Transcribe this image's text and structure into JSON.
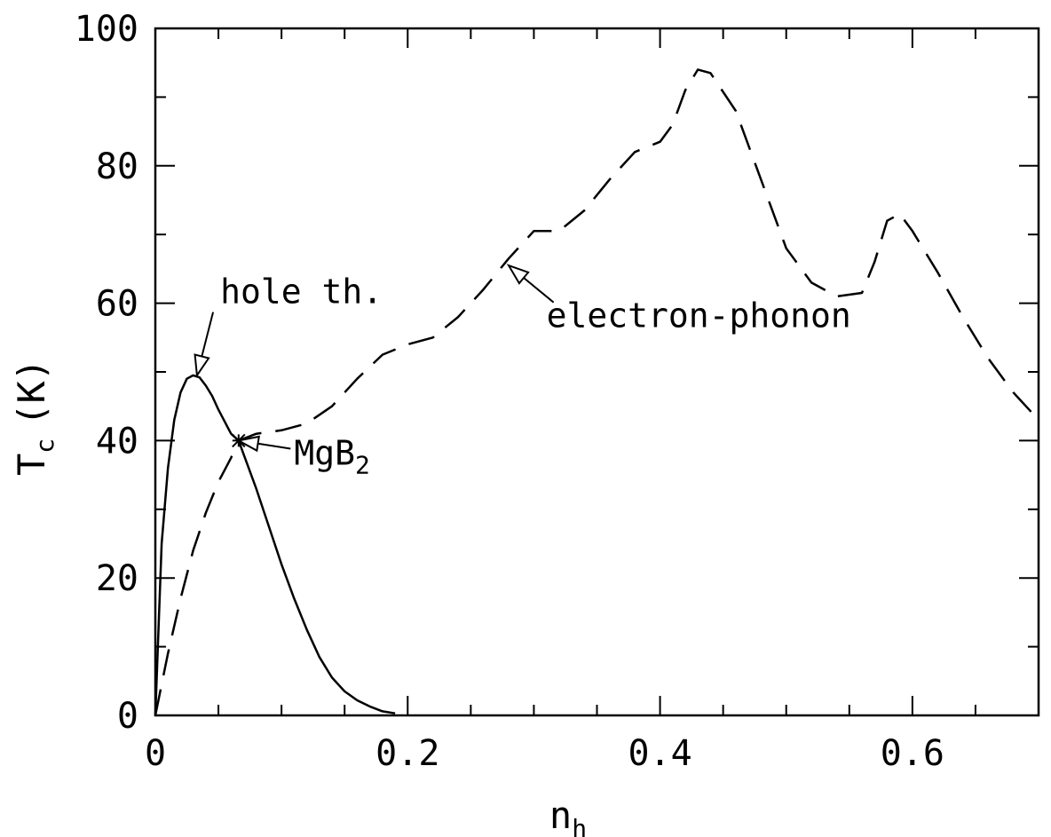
{
  "chart_data": {
    "type": "line",
    "xlabel": "n",
    "xlabel_sub": "h",
    "ylabel": "T",
    "ylabel_sub": "c",
    "ylabel_unit": "(K)",
    "xlim": [
      0,
      0.7
    ],
    "ylim": [
      0,
      100
    ],
    "x_ticks": [
      {
        "value": 0,
        "label": "0"
      },
      {
        "value": 0.2,
        "label": "0.2"
      },
      {
        "value": 0.4,
        "label": "0.4"
      },
      {
        "value": 0.6,
        "label": "0.6"
      }
    ],
    "y_ticks": [
      {
        "value": 0,
        "label": "0"
      },
      {
        "value": 20,
        "label": "20"
      },
      {
        "value": 40,
        "label": "40"
      },
      {
        "value": 60,
        "label": "60"
      },
      {
        "value": 80,
        "label": "80"
      },
      {
        "value": 100,
        "label": "100"
      }
    ],
    "x_minor_step": 0.05,
    "y_minor_step": 10,
    "grid": false,
    "series": [
      {
        "style": "solid",
        "x": [
          0.0,
          0.005,
          0.01,
          0.015,
          0.02,
          0.025,
          0.03,
          0.035,
          0.04,
          0.045,
          0.05,
          0.06,
          0.066,
          0.07,
          0.08,
          0.09,
          0.1,
          0.11,
          0.12,
          0.13,
          0.14,
          0.15,
          0.16,
          0.17,
          0.18,
          0.19
        ],
        "y": [
          0,
          25,
          36,
          43,
          47,
          49,
          49.5,
          49.2,
          48,
          46.5,
          44.5,
          41,
          40,
          38,
          33,
          27.5,
          22,
          17,
          12.5,
          8.5,
          5.5,
          3.5,
          2.2,
          1.3,
          0.6,
          0.3
        ]
      },
      {
        "style": "dashed",
        "x": [
          0.0,
          0.01,
          0.02,
          0.03,
          0.04,
          0.05,
          0.06,
          0.066,
          0.08,
          0.1,
          0.12,
          0.14,
          0.16,
          0.18,
          0.2,
          0.22,
          0.24,
          0.26,
          0.28,
          0.3,
          0.32,
          0.34,
          0.36,
          0.38,
          0.4,
          0.41,
          0.42,
          0.43,
          0.44,
          0.46,
          0.48,
          0.5,
          0.52,
          0.54,
          0.56,
          0.57,
          0.58,
          0.59,
          0.6,
          0.62,
          0.64,
          0.66,
          0.68,
          0.695
        ],
        "y": [
          0,
          9,
          17,
          24,
          29.5,
          34,
          37.5,
          40,
          41,
          41.5,
          42.5,
          45,
          49,
          52.5,
          54,
          55,
          58,
          62,
          66.5,
          70.5,
          70.5,
          73.5,
          78,
          82,
          83.5,
          86,
          91,
          94,
          93.5,
          88,
          78,
          68,
          63,
          61,
          61.5,
          66,
          72,
          73,
          70.5,
          64.5,
          58,
          52,
          47,
          44
        ]
      }
    ],
    "annotations": [
      {
        "text": "hole th.",
        "arrow_to": [
          0.033,
          49.5
        ],
        "anchor": [
          0.05,
          60
        ]
      },
      {
        "text": "MgB",
        "sub": "2",
        "arrow_to": [
          0.066,
          40
        ],
        "anchor": [
          0.11,
          36.5
        ]
      },
      {
        "text": "electron-phonon",
        "arrow_to": [
          0.28,
          65.5
        ],
        "anchor": [
          0.31,
          56.5
        ]
      }
    ],
    "markers": [
      {
        "x": 0.066,
        "y": 40,
        "shape": "star"
      }
    ]
  }
}
